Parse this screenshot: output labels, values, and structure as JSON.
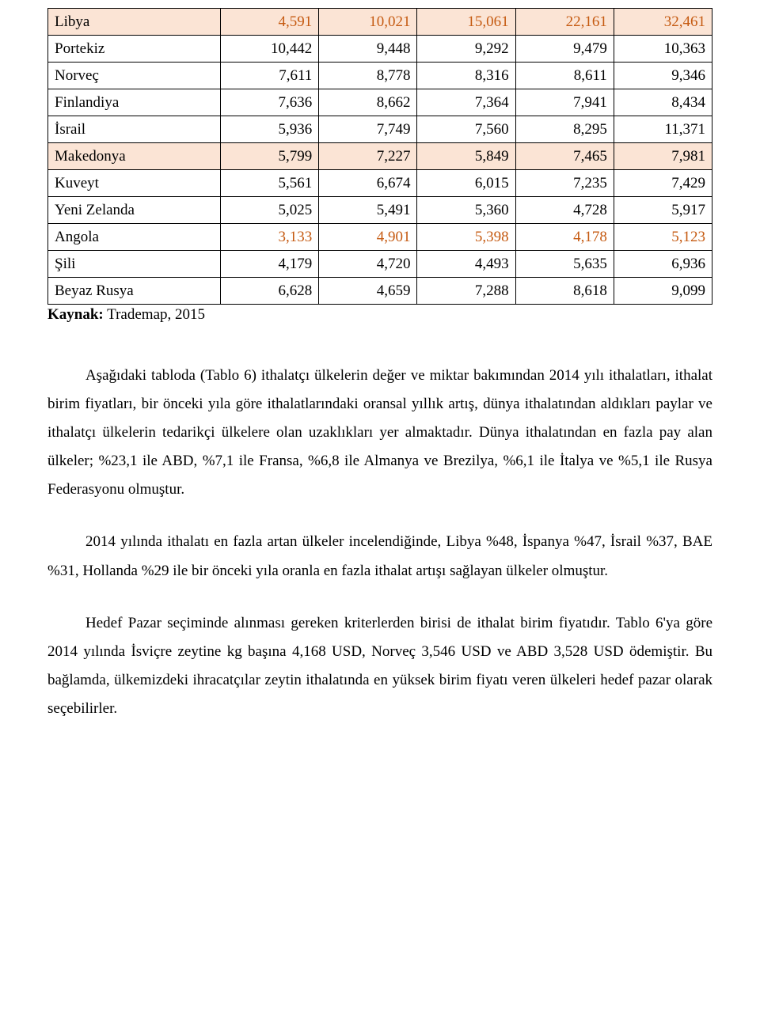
{
  "table": {
    "colors": {
      "black": "#000000",
      "orange": "#c55a11",
      "header_bg": "#fbe4d5"
    },
    "rows": [
      {
        "country": "Libya",
        "values": [
          "4,591",
          "10,021",
          "15,061",
          "22,161",
          "32,461"
        ],
        "color_scheme": "orange",
        "header": true
      },
      {
        "country": "Portekiz",
        "values": [
          "10,442",
          "9,448",
          "9,292",
          "9,479",
          "10,363"
        ],
        "color_scheme": "black",
        "header": false
      },
      {
        "country": "Norveç",
        "values": [
          "7,611",
          "8,778",
          "8,316",
          "8,611",
          "9,346"
        ],
        "color_scheme": "black",
        "header": false
      },
      {
        "country": "Finlandiya",
        "values": [
          "7,636",
          "8,662",
          "7,364",
          "7,941",
          "8,434"
        ],
        "color_scheme": "black",
        "header": false
      },
      {
        "country": "İsrail",
        "values": [
          "5,936",
          "7,749",
          "7,560",
          "8,295",
          "11,371"
        ],
        "color_scheme": "black",
        "header": false
      },
      {
        "country": "Makedonya",
        "values": [
          "5,799",
          "7,227",
          "5,849",
          "7,465",
          "7,981"
        ],
        "color_scheme": "black",
        "header": true
      },
      {
        "country": "Kuveyt",
        "values": [
          "5,561",
          "6,674",
          "6,015",
          "7,235",
          "7,429"
        ],
        "color_scheme": "black",
        "header": false
      },
      {
        "country": "Yeni Zelanda",
        "values": [
          "5,025",
          "5,491",
          "5,360",
          "4,728",
          "5,917"
        ],
        "color_scheme": "black",
        "header": false
      },
      {
        "country": "Angola",
        "values": [
          "3,133",
          "4,901",
          "5,398",
          "4,178",
          "5,123"
        ],
        "color_scheme": "orange",
        "header": false
      },
      {
        "country": "Şili",
        "values": [
          "4,179",
          "4,720",
          "4,493",
          "5,635",
          "6,936"
        ],
        "color_scheme": "black",
        "header": false
      },
      {
        "country": "Beyaz Rusya",
        "values": [
          "6,628",
          "4,659",
          "7,288",
          "8,618",
          "9,099"
        ],
        "color_scheme": "black",
        "header": false
      }
    ]
  },
  "source": {
    "label": "Kaynak:",
    "text": " Trademap, 2015"
  },
  "paragraphs": {
    "p1": "Aşağıdaki tabloda (Tablo 6) ithalatçı ülkelerin değer ve miktar bakımından 2014 yılı ithalatları, ithalat birim fiyatları, bir önceki yıla göre ithalatlarındaki oransal yıllık artış, dünya ithalatından aldıkları paylar ve ithalatçı ülkelerin tedarikçi ülkelere olan uzaklıkları yer almaktadır. Dünya ithalatından en fazla pay alan ülkeler; %23,1 ile ABD, %7,1 ile Fransa, %6,8 ile Almanya ve Brezilya, %6,1 ile İtalya ve %5,1 ile Rusya Federasyonu olmuştur.",
    "p2": "2014 yılında ithalatı en fazla artan ülkeler incelendiğinde, Libya %48, İspanya %47, İsrail %37, BAE %31, Hollanda %29 ile bir önceki yıla oranla en fazla ithalat artışı sağlayan ülkeler olmuştur.",
    "p3": "Hedef Pazar seçiminde alınması gereken kriterlerden birisi de ithalat birim fiyatıdır. Tablo 6'ya göre 2014 yılında İsviçre zeytine kg başına 4,168 USD, Norveç 3,546 USD ve ABD 3,528 USD ödemiştir. Bu bağlamda, ülkemizdeki ihracatçılar zeytin ithalatında en yüksek birim fiyatı veren ülkeleri hedef pazar olarak seçebilirler."
  }
}
